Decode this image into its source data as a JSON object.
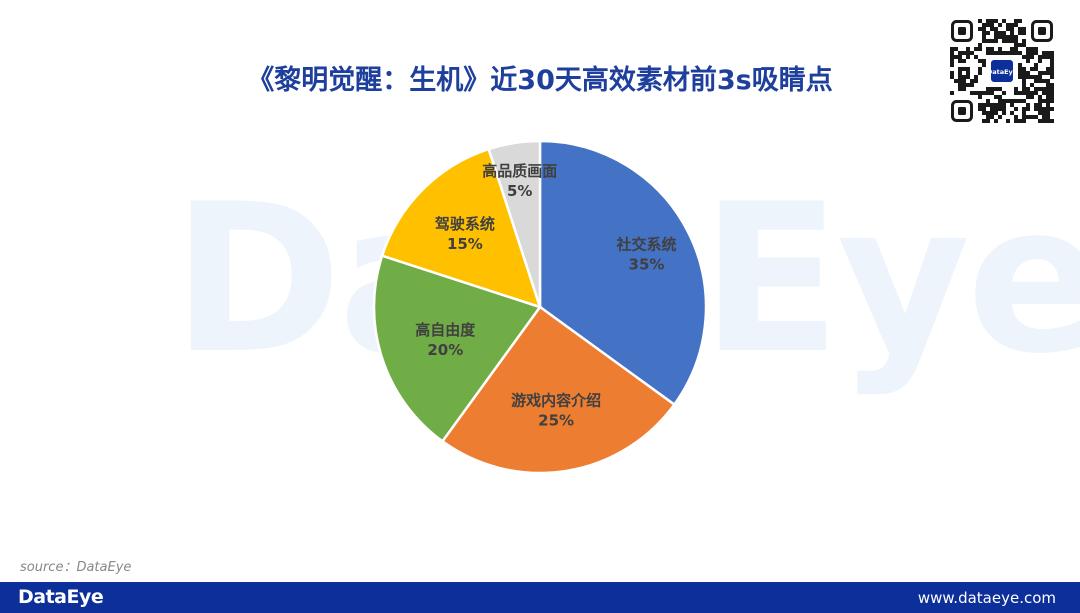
{
  "watermark": "DataEye",
  "title": "《黎明觉醒：生机》近30天高效素材前3s吸睛点",
  "qr_logo": "DataEye",
  "source": "source：DataEye",
  "footer": {
    "logo": "DataEye",
    "url": "www.dataeye.com"
  },
  "chart_data": {
    "type": "pie",
    "title": "《黎明觉醒：生机》近30天高效素材前3s吸睛点",
    "slices": [
      {
        "label": "社交系统",
        "value": 35,
        "pct": "35%",
        "color": "#4472c4"
      },
      {
        "label": "游戏内容介绍",
        "value": 25,
        "pct": "25%",
        "color": "#ed7d31"
      },
      {
        "label": "高自由度",
        "value": 20,
        "pct": "20%",
        "color": "#70ad47"
      },
      {
        "label": "驾驶系统",
        "value": 15,
        "pct": "15%",
        "color": "#ffc000"
      },
      {
        "label": "高品质画面",
        "value": 5,
        "pct": "5%",
        "color": "#d9d9d9"
      }
    ],
    "start_angle_deg": 0,
    "direction": "clockwise",
    "legend": "none"
  }
}
